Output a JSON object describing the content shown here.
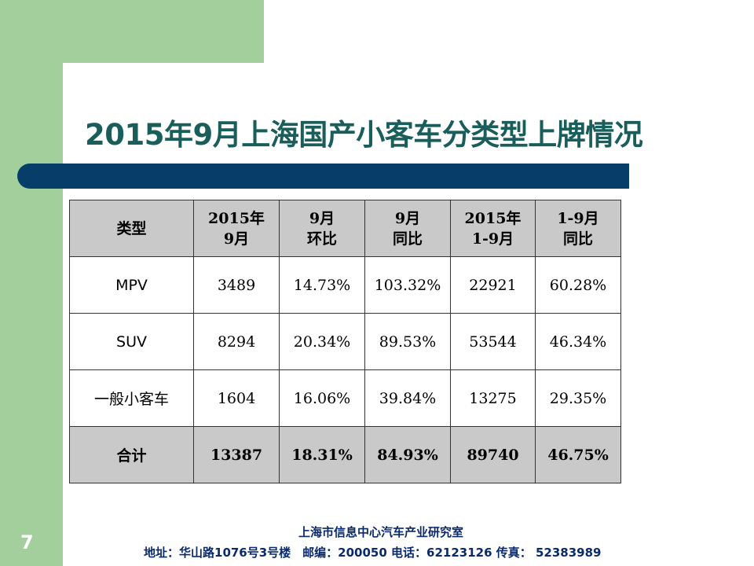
{
  "slide": {
    "title": "2015年9月上海国产小客车分类型上牌情况",
    "number": "7"
  },
  "table": {
    "headers": [
      [
        "类型"
      ],
      [
        "2015年",
        "9月"
      ],
      [
        "9月",
        "环比"
      ],
      [
        "9月",
        "同比"
      ],
      [
        "2015年",
        "1-9月"
      ],
      [
        "1-9月",
        "同比"
      ]
    ],
    "rows": [
      [
        "MPV",
        "3489",
        "14.73%",
        "103.32%",
        "22921",
        "60.28%"
      ],
      [
        "SUV",
        "8294",
        "20.34%",
        "89.53%",
        "53544",
        "46.34%"
      ],
      [
        "一般小客车",
        "1604",
        "16.06%",
        "39.84%",
        "13275",
        "29.35%"
      ]
    ],
    "total": [
      "合计",
      "13387",
      "18.31%",
      "84.93%",
      "89740",
      "46.75%"
    ]
  },
  "footer": {
    "org": "上海市信息中心汽车产业研究室",
    "contact": "地址：华山路1076号3号楼　邮编：200050 电话：62123126 传真： 52383989"
  },
  "colors": {
    "green": "#a3cf9c",
    "title": "#1a5e5c",
    "bar": "#073d69",
    "header_fill": "#c9c9c9",
    "footer_text": "#0a2a6b"
  }
}
